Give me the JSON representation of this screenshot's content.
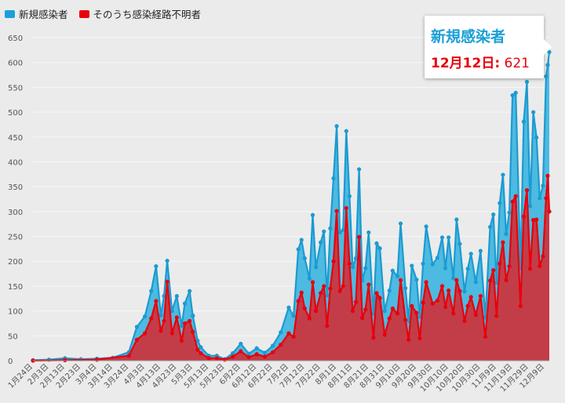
{
  "legend": [
    {
      "label": "新規感染者",
      "color": "#1aa0d8"
    },
    {
      "label": "そのうち感染経路不明者",
      "color": "#e8000b"
    }
  ],
  "tooltip": {
    "title": "新規感染者",
    "date": "12月12日:",
    "value": "621"
  },
  "colors": {
    "new_line": "#1b9bd1",
    "new_fill": "#45b7e0",
    "unknown_line": "#e8000b",
    "unknown_fill": "#c9363f",
    "grid": "#f7f7f7",
    "axis_text": "#555555"
  },
  "chart_data": {
    "type": "area",
    "y_ticks": [
      0,
      50,
      100,
      150,
      200,
      250,
      300,
      350,
      400,
      450,
      500,
      550,
      600,
      650
    ],
    "ylim": [
      0,
      650
    ],
    "x_tick_labels": [
      "1月24日",
      "2月3日",
      "2月13日",
      "2月23日",
      "3月4日",
      "3月14日",
      "3月24日",
      "4月3日",
      "4月13日",
      "4月23日",
      "5月3日",
      "5月13日",
      "5月23日",
      "6月2日",
      "6月12日",
      "6月22日",
      "7月2日",
      "7月12日",
      "7月22日",
      "8月1日",
      "8月11日",
      "8月21日",
      "8月31日",
      "9月10日",
      "9月20日",
      "9月30日",
      "10月10日",
      "10月20日",
      "10月30日",
      "11月9日",
      "11月19日",
      "11月29日",
      "12月9日"
    ],
    "series": [
      {
        "name": "新規感染者",
        "points": [
          [
            "1月24日",
            1
          ],
          [
            "2月3日",
            2
          ],
          [
            "2月13日",
            5
          ],
          [
            "2月23日",
            3
          ],
          [
            "3月4日",
            4
          ],
          [
            "3月14日",
            6
          ],
          [
            "3月24日",
            17
          ],
          [
            "3月29日",
            68
          ],
          [
            "4月3日",
            89
          ],
          [
            "4月7日",
            140
          ],
          [
            "4月10日",
            190
          ],
          [
            "4月13日",
            91
          ],
          [
            "4月15日",
            130
          ],
          [
            "4月17日",
            201
          ],
          [
            "4月20日",
            100
          ],
          [
            "4月23日",
            130
          ],
          [
            "4月26日",
            70
          ],
          [
            "4月28日",
            115
          ],
          [
            "5月1日",
            140
          ],
          [
            "5月3d",
            90
          ],
          [
            "5月3日",
            91
          ],
          [
            "5月6日",
            40
          ],
          [
            "5月8日",
            27
          ],
          [
            "5月13日",
            10
          ],
          [
            "5月18日",
            10
          ],
          [
            "5月23日",
            3
          ],
          [
            "5月28日",
            15
          ],
          [
            "6月2日",
            34
          ],
          [
            "6月7日",
            14
          ],
          [
            "6月12日",
            25
          ],
          [
            "6月17日",
            16
          ],
          [
            "6月22日",
            30
          ],
          [
            "6月27日",
            57
          ],
          [
            "7月2日",
            107
          ],
          [
            "7月5日",
            90
          ],
          [
            "7月8日",
            224
          ],
          [
            "7月10日",
            243
          ],
          [
            "7月12日",
            206
          ],
          [
            "7月15日",
            165
          ],
          [
            "7月17日",
            293
          ],
          [
            "7月19日",
            188
          ],
          [
            "7月22日",
            238
          ],
          [
            "7月24日",
            260
          ],
          [
            "7月26日",
            131
          ],
          [
            "7月28日",
            266
          ],
          [
            "7月30日",
            367
          ],
          [
            "8月1日",
            472
          ],
          [
            "8月3日",
            258
          ],
          [
            "8月5日",
            263
          ],
          [
            "8月7日",
            462
          ],
          [
            "8月9日",
            331
          ],
          [
            "8月11日",
            188
          ],
          [
            "8月13日",
            206
          ],
          [
            "8月15日",
            385
          ],
          [
            "8月17日",
            161
          ],
          [
            "8月19日",
            186
          ],
          [
            "8月21日",
            258
          ],
          [
            "8月24日",
            95
          ],
          [
            "8月26日",
            236
          ],
          [
            "8月28日",
            226
          ],
          [
            "8月31日",
            100
          ],
          [
            "9月3日",
            141
          ],
          [
            "9月5日",
            181
          ],
          [
            "9月8日",
            170
          ],
          [
            "9月10日",
            276
          ],
          [
            "9月13日",
            146
          ],
          [
            "9月15日",
            80
          ],
          [
            "9月17日",
            191
          ],
          [
            "9月20日",
            163
          ],
          [
            "9月22日",
            88
          ],
          [
            "9月24日",
            195
          ],
          [
            "9月26日",
            270
          ],
          [
            "9月30日",
            194
          ],
          [
            "10月3日",
            207
          ],
          [
            "10月6日",
            248
          ],
          [
            "10月8日",
            186
          ],
          [
            "10月10日",
            248
          ],
          [
            "10月13日",
            166
          ],
          [
            "10月15日",
            284
          ],
          [
            "10月17日",
            235
          ],
          [
            "10月20日",
            139
          ],
          [
            "10月22日",
            185
          ],
          [
            "10月24日",
            215
          ],
          [
            "10月27日",
            158
          ],
          [
            "10月30日",
            221
          ],
          [
            "11月2日",
            87
          ],
          [
            "11月5日",
            269
          ],
          [
            "11月7日",
            294
          ],
          [
            "11月9日",
            157
          ],
          [
            "11月11日",
            317
          ],
          [
            "11月13日",
            374
          ],
          [
            "11月15日",
            255
          ],
          [
            "11月17日",
            298
          ],
          [
            "11月19日",
            534
          ],
          [
            "11月21日",
            539
          ],
          [
            "11月24日",
            186
          ],
          [
            "11月26日",
            481
          ],
          [
            "11月28日",
            561
          ],
          [
            "11月30日",
            311
          ],
          [
            "12月2日",
            500
          ],
          [
            "12月4日",
            449
          ],
          [
            "12月6日",
            327
          ],
          [
            "12月8日",
            352
          ],
          [
            "12月10日",
            572
          ],
          [
            "12月11日",
            595
          ],
          [
            "12月12日",
            621
          ]
        ]
      },
      {
        "name": "そのうち感染経路不明者",
        "points": [
          [
            "1月24日",
            0
          ],
          [
            "2月13日",
            1
          ],
          [
            "3月4日",
            2
          ],
          [
            "3月24日",
            10
          ],
          [
            "3月29日",
            42
          ],
          [
            "4月3日",
            55
          ],
          [
            "4月7日",
            85
          ],
          [
            "4月10日",
            120
          ],
          [
            "4月13日",
            60
          ],
          [
            "4月15日",
            80
          ],
          [
            "4月17日",
            159
          ],
          [
            "4月20日",
            55
          ],
          [
            "4月23日",
            87
          ],
          [
            "4月26日",
            40
          ],
          [
            "4月28日",
            75
          ],
          [
            "5月1日",
            80
          ],
          [
            "5月3日",
            58
          ],
          [
            "5月6日",
            22
          ],
          [
            "5月8日",
            15
          ],
          [
            "5月13日",
            5
          ],
          [
            "5月18日",
            5
          ],
          [
            "5月23日",
            2
          ],
          [
            "5月28日",
            8
          ],
          [
            "6月2日",
            19
          ],
          [
            "6月7日",
            7
          ],
          [
            "6月12日",
            13
          ],
          [
            "6月17日",
            8
          ],
          [
            "6月22日",
            17
          ],
          [
            "6月27日",
            32
          ],
          [
            "7月2日",
            55
          ],
          [
            "7月5日",
            48
          ],
          [
            "7月8日",
            120
          ],
          [
            "7月10日",
            137
          ],
          [
            "7月12日",
            105
          ],
          [
            "7月15日",
            85
          ],
          [
            "7月17日",
            158
          ],
          [
            "7月19日",
            100
          ],
          [
            "7月22日",
            136
          ],
          [
            "7月24日",
            150
          ],
          [
            "7月26日",
            70
          ],
          [
            "7月28日",
            145
          ],
          [
            "7月30日",
            200
          ],
          [
            "8月1日",
            301
          ],
          [
            "8月3日",
            140
          ],
          [
            "8月5日",
            150
          ],
          [
            "8月7日",
            307
          ],
          [
            "8月9日",
            195
          ],
          [
            "8月11日",
            100
          ],
          [
            "8月13日",
            118
          ],
          [
            "8月15日",
            249
          ],
          [
            "8月17日",
            86
          ],
          [
            "8月19日",
            103
          ],
          [
            "8月21日",
            153
          ],
          [
            "8月24日",
            46
          ],
          [
            "8月26日",
            136
          ],
          [
            "8月28日",
            126
          ],
          [
            "8月31日",
            52
          ],
          [
            "9月3日",
            85
          ],
          [
            "9月5日",
            105
          ],
          [
            "9月8日",
            95
          ],
          [
            "9月10日",
            162
          ],
          [
            "9月13日",
            82
          ],
          [
            "9月15日",
            42
          ],
          [
            "9月17日",
            110
          ],
          [
            "9月20日",
            96
          ],
          [
            "9月22日",
            45
          ],
          [
            "9月24日",
            117
          ],
          [
            "9月26日",
            158
          ],
          [
            "9月30日",
            115
          ],
          [
            "10月3日",
            121
          ],
          [
            "10月6日",
            150
          ],
          [
            "10月8日",
            108
          ],
          [
            "10月10日",
            141
          ],
          [
            "10月13日",
            95
          ],
          [
            "10月15日",
            162
          ],
          [
            "10月17日",
            140
          ],
          [
            "10月20日",
            80
          ],
          [
            "10月22日",
            110
          ],
          [
            "10月24日",
            128
          ],
          [
            "10月27日",
            92
          ],
          [
            "10月30日",
            130
          ],
          [
            "11月2日",
            48
          ],
          [
            "11月5日",
            161
          ],
          [
            "11月7日",
            182
          ],
          [
            "11月9日",
            90
          ],
          [
            "11月11日",
            195
          ],
          [
            "11月13日",
            238
          ],
          [
            "11月15日",
            162
          ],
          [
            "11月17日",
            190
          ],
          [
            "11月19日",
            320
          ],
          [
            "11月21日",
            331
          ],
          [
            "11月24日",
            110
          ],
          [
            "11月26日",
            290
          ],
          [
            "11月28日",
            343
          ],
          [
            "11月30日",
            185
          ],
          [
            "12月2日",
            283
          ],
          [
            "12月4日",
            284
          ],
          [
            "12月6日",
            190
          ],
          [
            "12月8日",
            210
          ],
          [
            "12月10日",
            327
          ],
          [
            "12月11日",
            372
          ],
          [
            "12月12日",
            300
          ]
        ]
      }
    ]
  }
}
